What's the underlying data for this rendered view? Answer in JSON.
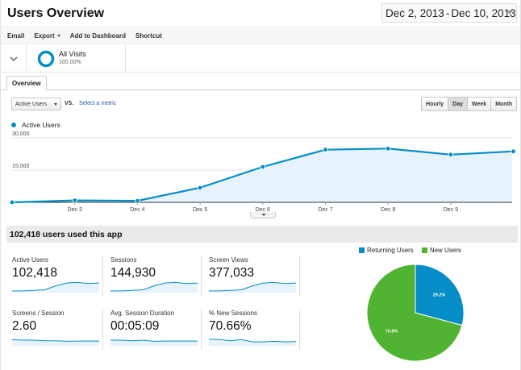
{
  "header": {
    "title": "Users Overview",
    "date_start": "Dec 2, 2013",
    "date_sep": "-",
    "date_end": "Dec 10, 2013"
  },
  "toolbar": {
    "email": "Email",
    "export": "Export",
    "add_to_dashboard": "Add to Dashboard",
    "shortcut": "Shortcut"
  },
  "segment": {
    "name": "All Visits",
    "percent": "100.00%"
  },
  "tabs": [
    {
      "label": "Overview"
    }
  ],
  "controls": {
    "metric": "Active Users",
    "vs": "VS.",
    "select_metric": "Select a metric",
    "granularity": [
      "Hourly",
      "Day",
      "Week",
      "Month"
    ],
    "active_granularity": "Day"
  },
  "chart_data": {
    "type": "area",
    "series": [
      {
        "name": "Active Users",
        "color": "#058dc7",
        "fill": "#e6f3fa"
      }
    ],
    "y_ticks": [
      "30,000",
      "15,000"
    ],
    "x_ticks": [
      "Dec 3",
      "Dec 4",
      "Dec 5",
      "Dec 6",
      "Dec 7",
      "Dec 8",
      "Dec 9"
    ],
    "x": [
      "Dec 2",
      "Dec 3",
      "Dec 4",
      "Dec 5",
      "Dec 6",
      "Dec 7",
      "Dec 8",
      "Dec 9",
      "Dec 10"
    ],
    "values": [
      0,
      900,
      700,
      6800,
      16500,
      24500,
      25000,
      22200,
      23700
    ],
    "ylim": [
      0,
      30000
    ]
  },
  "summary": {
    "headline": "102,418 users used this app",
    "kpis": [
      {
        "label": "Active Users",
        "value": "102,418",
        "trend": [
          0.15,
          0.15,
          0.2,
          0.25,
          0.6,
          0.85,
          0.9,
          0.8,
          0.85
        ]
      },
      {
        "label": "Sessions",
        "value": "144,930",
        "trend": [
          0.15,
          0.15,
          0.2,
          0.25,
          0.6,
          0.85,
          0.9,
          0.8,
          0.85
        ]
      },
      {
        "label": "Screen Views",
        "value": "377,033",
        "trend": [
          0.15,
          0.15,
          0.2,
          0.25,
          0.6,
          0.85,
          0.9,
          0.8,
          0.85
        ]
      },
      {
        "label": "Screens / Session",
        "value": "2.60",
        "trend": [
          0.55,
          0.5,
          0.5,
          0.45,
          0.45,
          0.4,
          0.42,
          0.42,
          0.42
        ]
      },
      {
        "label": "Avg. Session Duration",
        "value": "00:05:09",
        "trend": [
          0.5,
          0.5,
          0.45,
          0.5,
          0.4,
          0.42,
          0.42,
          0.42,
          0.42
        ]
      },
      {
        "label": "% New Sessions",
        "value": "70.66%",
        "trend": [
          0.6,
          0.55,
          0.45,
          0.55,
          0.35,
          0.35,
          0.4,
          0.35,
          0.38
        ]
      }
    ]
  },
  "pie": {
    "slices": [
      {
        "name": "Returning Users",
        "value": 29.2,
        "label": "29.2%",
        "color": "#058dc7"
      },
      {
        "name": "New Users",
        "value": 70.8,
        "label": "70.8%",
        "color": "#50b432"
      }
    ]
  }
}
